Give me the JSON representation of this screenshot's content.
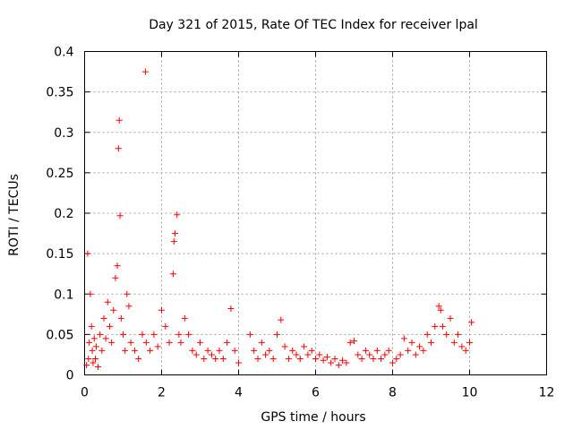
{
  "chart_data": {
    "type": "scatter",
    "title": "Day 321 of 2015, Rate Of TEC Index for receiver lpal",
    "xlabel": "GPS time / hours",
    "ylabel": "ROTI / TECUs",
    "xlim": [
      0,
      12
    ],
    "ylim": [
      0,
      0.4
    ],
    "xticks": [
      0,
      2,
      4,
      6,
      8,
      10,
      12
    ],
    "xtick_labels": [
      "0",
      "2",
      "4",
      "6",
      "8",
      "10",
      "12"
    ],
    "yticks": [
      0,
      0.05,
      0.1,
      0.15,
      0.2,
      0.25,
      0.3,
      0.35,
      0.4
    ],
    "ytick_labels": [
      "0",
      "0.05",
      "0.1",
      "0.15",
      "0.2",
      "0.25",
      "0.3",
      "0.35",
      "0.4"
    ],
    "grid": true,
    "marker": "plus",
    "marker_color": "#ff0000",
    "series": [
      {
        "x": [
          0.05,
          0.08,
          0.1,
          0.12,
          0.15,
          0.18,
          0.2,
          0.22,
          0.25,
          0.28,
          0.3,
          0.35,
          0.4,
          0.45,
          0.5,
          0.55,
          0.6,
          0.65,
          0.7,
          0.75,
          0.8,
          0.85,
          0.88,
          0.9,
          0.92,
          0.95,
          1.0,
          1.05,
          1.1,
          1.15,
          1.2,
          1.3,
          1.4,
          1.5,
          1.58,
          1.6,
          1.7,
          1.8,
          1.9,
          2.0,
          2.1,
          2.2,
          2.3,
          2.32,
          2.35,
          2.4,
          2.45,
          2.5,
          2.6,
          2.7,
          2.8,
          2.9,
          3.0,
          3.1,
          3.2,
          3.3,
          3.4,
          3.5,
          3.6,
          3.7,
          3.8,
          3.9,
          4.0,
          4.3,
          4.4,
          4.5,
          4.6,
          4.7,
          4.8,
          4.9,
          5.0,
          5.1,
          5.2,
          5.3,
          5.4,
          5.5,
          5.6,
          5.7,
          5.8,
          5.9,
          6.0,
          6.1,
          6.2,
          6.3,
          6.4,
          6.5,
          6.6,
          6.7,
          6.8,
          6.9,
          7.0,
          7.1,
          7.2,
          7.3,
          7.4,
          7.5,
          7.6,
          7.7,
          7.8,
          7.9,
          8.0,
          8.1,
          8.2,
          8.3,
          8.4,
          8.5,
          8.6,
          8.7,
          8.8,
          8.9,
          9.0,
          9.1,
          9.2,
          9.25,
          9.3,
          9.4,
          9.5,
          9.6,
          9.7,
          9.8,
          9.9,
          10.0,
          10.05
        ],
        "y": [
          0.012,
          0.15,
          0.02,
          0.04,
          0.1,
          0.06,
          0.03,
          0.015,
          0.045,
          0.02,
          0.035,
          0.01,
          0.05,
          0.03,
          0.07,
          0.045,
          0.09,
          0.06,
          0.04,
          0.08,
          0.12,
          0.135,
          0.28,
          0.315,
          0.197,
          0.07,
          0.05,
          0.03,
          0.1,
          0.085,
          0.04,
          0.03,
          0.02,
          0.05,
          0.375,
          0.04,
          0.03,
          0.05,
          0.035,
          0.08,
          0.06,
          0.04,
          0.125,
          0.165,
          0.175,
          0.198,
          0.05,
          0.04,
          0.07,
          0.05,
          0.03,
          0.025,
          0.04,
          0.02,
          0.03,
          0.025,
          0.02,
          0.03,
          0.02,
          0.04,
          0.082,
          0.03,
          0.015,
          0.05,
          0.03,
          0.02,
          0.04,
          0.025,
          0.03,
          0.02,
          0.05,
          0.068,
          0.035,
          0.02,
          0.03,
          0.025,
          0.02,
          0.035,
          0.025,
          0.03,
          0.02,
          0.025,
          0.018,
          0.022,
          0.015,
          0.02,
          0.012,
          0.018,
          0.015,
          0.04,
          0.042,
          0.025,
          0.02,
          0.03,
          0.025,
          0.02,
          0.03,
          0.02,
          0.025,
          0.03,
          0.015,
          0.02,
          0.025,
          0.045,
          0.03,
          0.04,
          0.025,
          0.035,
          0.03,
          0.05,
          0.04,
          0.06,
          0.085,
          0.08,
          0.06,
          0.05,
          0.07,
          0.04,
          0.05,
          0.035,
          0.03,
          0.04,
          0.065
        ]
      }
    ]
  }
}
